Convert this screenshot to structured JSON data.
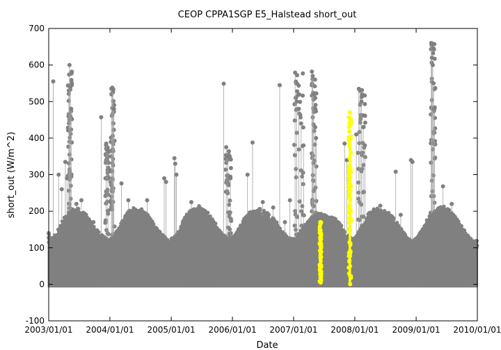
{
  "chart_data": {
    "type": "scatter",
    "title": "CEOP CPPA1SGP E5_Halstead  short_out",
    "xlabel": "Date",
    "ylabel": "short_out (W/m^2)",
    "xlim": [
      "2003/01/01",
      "2010/01/01"
    ],
    "ylim": [
      -100,
      700
    ],
    "x_ticks": [
      "2003/01/01",
      "2004/01/01",
      "2005/01/01",
      "2006/01/01",
      "2007/01/01",
      "2008/01/01",
      "2009/01/01",
      "2010/01/01"
    ],
    "y_ticks": [
      -100,
      0,
      100,
      200,
      300,
      400,
      500,
      600,
      700
    ],
    "grid": false,
    "colors": {
      "main": "#808080",
      "flagged": "#ffff00"
    },
    "series": [
      {
        "color": "#808080",
        "daily_envelope": [
          {
            "x": "2002/12/31",
            "y": 140
          },
          {
            "x": "2003/01/15",
            "y": 125
          },
          {
            "x": "2003/02/15",
            "y": 140
          },
          {
            "x": "2003/03/15",
            "y": 170
          },
          {
            "x": "2003/04/15",
            "y": 190
          },
          {
            "x": "2003/05/15",
            "y": 205
          },
          {
            "x": "2003/06/15",
            "y": 210
          },
          {
            "x": "2003/07/15",
            "y": 205
          },
          {
            "x": "2003/08/15",
            "y": 190
          },
          {
            "x": "2003/09/15",
            "y": 170
          },
          {
            "x": "2003/10/15",
            "y": 150
          },
          {
            "x": "2003/11/15",
            "y": 135
          },
          {
            "x": "2003/12/15",
            "y": 125
          },
          {
            "x": "2004/01/15",
            "y": 130
          },
          {
            "x": "2004/02/15",
            "y": 150
          },
          {
            "x": "2004/03/15",
            "y": 175
          },
          {
            "x": "2004/04/15",
            "y": 200
          },
          {
            "x": "2004/05/15",
            "y": 210
          },
          {
            "x": "2004/06/15",
            "y": 210
          },
          {
            "x": "2004/07/15",
            "y": 205
          },
          {
            "x": "2004/08/15",
            "y": 190
          },
          {
            "x": "2004/09/15",
            "y": 170
          },
          {
            "x": "2004/10/15",
            "y": 150
          },
          {
            "x": "2004/11/15",
            "y": 135
          },
          {
            "x": "2004/12/15",
            "y": 125
          },
          {
            "x": "2005/01/15",
            "y": 130
          },
          {
            "x": "2005/02/15",
            "y": 150
          },
          {
            "x": "2005/03/15",
            "y": 180
          },
          {
            "x": "2005/04/15",
            "y": 200
          },
          {
            "x": "2005/05/15",
            "y": 210
          },
          {
            "x": "2005/06/15",
            "y": 215
          },
          {
            "x": "2005/07/15",
            "y": 205
          },
          {
            "x": "2005/08/15",
            "y": 195
          },
          {
            "x": "2005/09/15",
            "y": 175
          },
          {
            "x": "2005/10/15",
            "y": 150
          },
          {
            "x": "2005/11/15",
            "y": 135
          },
          {
            "x": "2005/12/15",
            "y": 125
          },
          {
            "x": "2006/01/15",
            "y": 135
          },
          {
            "x": "2006/02/15",
            "y": 160
          },
          {
            "x": "2006/03/15",
            "y": 185
          },
          {
            "x": "2006/04/15",
            "y": 200
          },
          {
            "x": "2006/05/15",
            "y": 205
          },
          {
            "x": "2006/06/15",
            "y": 210
          },
          {
            "x": "2006/07/15",
            "y": 200
          },
          {
            "x": "2006/08/15",
            "y": 190
          },
          {
            "x": "2006/09/15",
            "y": 175
          },
          {
            "x": "2006/10/15",
            "y": 155
          },
          {
            "x": "2006/11/15",
            "y": 135
          },
          {
            "x": "2006/12/15",
            "y": 125
          },
          {
            "x": "2007/01/15",
            "y": 130
          },
          {
            "x": "2007/02/15",
            "y": 150
          },
          {
            "x": "2007/03/15",
            "y": 170
          },
          {
            "x": "2007/04/15",
            "y": 185
          },
          {
            "x": "2007/05/15",
            "y": 195
          },
          {
            "x": "2007/06/15",
            "y": 195
          },
          {
            "x": "2007/07/15",
            "y": 190
          },
          {
            "x": "2007/08/15",
            "y": 185
          },
          {
            "x": "2007/09/15",
            "y": 180
          },
          {
            "x": "2007/10/15",
            "y": 160
          },
          {
            "x": "2007/11/15",
            "y": 140
          },
          {
            "x": "2007/12/15",
            "y": 125
          },
          {
            "x": "2008/01/15",
            "y": 140
          },
          {
            "x": "2008/02/15",
            "y": 165
          },
          {
            "x": "2008/03/15",
            "y": 190
          },
          {
            "x": "2008/04/15",
            "y": 205
          },
          {
            "x": "2008/05/15",
            "y": 210
          },
          {
            "x": "2008/06/15",
            "y": 210
          },
          {
            "x": "2008/07/15",
            "y": 200
          },
          {
            "x": "2008/08/15",
            "y": 185
          },
          {
            "x": "2008/09/15",
            "y": 165
          },
          {
            "x": "2008/10/15",
            "y": 145
          },
          {
            "x": "2008/11/15",
            "y": 125
          },
          {
            "x": "2008/12/15",
            "y": 120
          },
          {
            "x": "2009/01/15",
            "y": 135
          },
          {
            "x": "2009/02/15",
            "y": 160
          },
          {
            "x": "2009/03/15",
            "y": 185
          },
          {
            "x": "2009/04/15",
            "y": 200
          },
          {
            "x": "2009/05/15",
            "y": 210
          },
          {
            "x": "2009/06/15",
            "y": 215
          },
          {
            "x": "2009/07/15",
            "y": 205
          },
          {
            "x": "2009/08/15",
            "y": 190
          },
          {
            "x": "2009/09/15",
            "y": 170
          },
          {
            "x": "2009/10/15",
            "y": 150
          },
          {
            "x": "2009/11/15",
            "y": 130
          },
          {
            "x": "2009/12/15",
            "y": 120
          }
        ],
        "spikes": [
          {
            "x": "2003/01/01",
            "y": 140
          },
          {
            "x": "2003/01/28",
            "y": 555
          },
          {
            "x": "2003/03/01",
            "y": 300
          },
          {
            "x": "2003/03/20",
            "y": 260
          },
          {
            "x": "2003/04/10",
            "y": 335
          },
          {
            "x": "2003/04/20",
            "y": 290
          },
          {
            "x": "2003/05/01",
            "y": 530
          },
          {
            "x": "2003/05/05",
            "y": 600
          },
          {
            "x": "2003/05/10",
            "y": 540
          },
          {
            "x": "2003/05/15",
            "y": 480
          },
          {
            "x": "2003/06/15",
            "y": 220
          },
          {
            "x": "2003/07/15",
            "y": 230
          },
          {
            "x": "2003/09/25",
            "y": 170
          },
          {
            "x": "2003/11/10",
            "y": 457
          },
          {
            "x": "2003/12/10",
            "y": 385
          },
          {
            "x": "2003/12/20",
            "y": 365
          },
          {
            "x": "2004/01/10",
            "y": 520
          },
          {
            "x": "2004/01/15",
            "y": 538
          },
          {
            "x": "2004/01/20",
            "y": 530
          },
          {
            "x": "2004/01/25",
            "y": 480
          },
          {
            "x": "2004/03/10",
            "y": 276
          },
          {
            "x": "2004/04/20",
            "y": 230
          },
          {
            "x": "2004/08/10",
            "y": 230
          },
          {
            "x": "2004/11/20",
            "y": 290
          },
          {
            "x": "2004/12/01",
            "y": 280
          },
          {
            "x": "2005/01/20",
            "y": 345
          },
          {
            "x": "2005/01/25",
            "y": 330
          },
          {
            "x": "2005/02/01",
            "y": 300
          },
          {
            "x": "2005/05/01",
            "y": 225
          },
          {
            "x": "2005/11/10",
            "y": 549
          },
          {
            "x": "2005/11/25",
            "y": 375
          },
          {
            "x": "2005/12/05",
            "y": 350
          },
          {
            "x": "2005/12/20",
            "y": 290
          },
          {
            "x": "2006/04/01",
            "y": 300
          },
          {
            "x": "2006/05/01",
            "y": 388
          },
          {
            "x": "2006/07/01",
            "y": 225
          },
          {
            "x": "2006/09/01",
            "y": 210
          },
          {
            "x": "2006/10/10",
            "y": 545
          },
          {
            "x": "2006/11/10",
            "y": 170
          },
          {
            "x": "2006/12/10",
            "y": 230
          },
          {
            "x": "2007/01/10",
            "y": 579
          },
          {
            "x": "2007/01/20",
            "y": 500
          },
          {
            "x": "2007/02/01",
            "y": 480
          },
          {
            "x": "2007/02/15",
            "y": 440
          },
          {
            "x": "2007/03/01",
            "y": 380
          },
          {
            "x": "2007/04/20",
            "y": 582
          },
          {
            "x": "2007/04/25",
            "y": 570
          },
          {
            "x": "2007/05/01",
            "y": 520
          },
          {
            "x": "2007/05/10",
            "y": 430
          },
          {
            "x": "2007/05/15",
            "y": 400
          },
          {
            "x": "2007/11/01",
            "y": 385
          },
          {
            "x": "2007/11/15",
            "y": 340
          },
          {
            "x": "2008/01/10",
            "y": 410
          },
          {
            "x": "2008/01/25",
            "y": 535
          },
          {
            "x": "2008/02/01",
            "y": 530
          },
          {
            "x": "2008/02/10",
            "y": 500
          },
          {
            "x": "2008/02/20",
            "y": 430
          },
          {
            "x": "2008/03/01",
            "y": 380
          },
          {
            "x": "2008/06/01",
            "y": 215
          },
          {
            "x": "2008/09/01",
            "y": 308
          },
          {
            "x": "2008/10/01",
            "y": 190
          },
          {
            "x": "2008/12/01",
            "y": 340
          },
          {
            "x": "2008/12/10",
            "y": 335
          },
          {
            "x": "2009/04/01",
            "y": 660
          },
          {
            "x": "2009/04/05",
            "y": 620
          },
          {
            "x": "2009/04/10",
            "y": 600
          },
          {
            "x": "2009/04/15",
            "y": 550
          },
          {
            "x": "2009/04/20",
            "y": 480
          },
          {
            "x": "2009/06/10",
            "y": 268
          },
          {
            "x": "2009/08/01",
            "y": 220
          }
        ],
        "dense_bands": [
          {
            "x_start": "2003/04/25",
            "x_end": "2003/05/20",
            "y_min": 0,
            "y_max": 600
          },
          {
            "x_start": "2003/12/05",
            "x_end": "2003/12/25",
            "y_min": 0,
            "y_max": 385
          },
          {
            "x_start": "2004/01/05",
            "x_end": "2004/01/30",
            "y_min": 0,
            "y_max": 538
          },
          {
            "x_start": "2005/11/20",
            "x_end": "2005/12/25",
            "y_min": 0,
            "y_max": 375
          },
          {
            "x_start": "2007/01/05",
            "x_end": "2007/03/05",
            "y_min": 0,
            "y_max": 579
          },
          {
            "x_start": "2007/04/18",
            "x_end": "2007/05/18",
            "y_min": 0,
            "y_max": 582
          },
          {
            "x_start": "2008/01/20",
            "x_end": "2008/03/05",
            "y_min": 0,
            "y_max": 535
          },
          {
            "x_start": "2009/03/28",
            "x_end": "2009/04/25",
            "y_min": 0,
            "y_max": 660
          }
        ]
      },
      {
        "color": "#ffff00",
        "bands": [
          {
            "x_start": "2007/06/05",
            "x_end": "2007/06/15",
            "y_min": 0,
            "y_max": 170
          },
          {
            "x_start": "2007/11/25",
            "x_end": "2007/12/10",
            "y_min": 0,
            "y_max": 470
          }
        ]
      }
    ]
  }
}
